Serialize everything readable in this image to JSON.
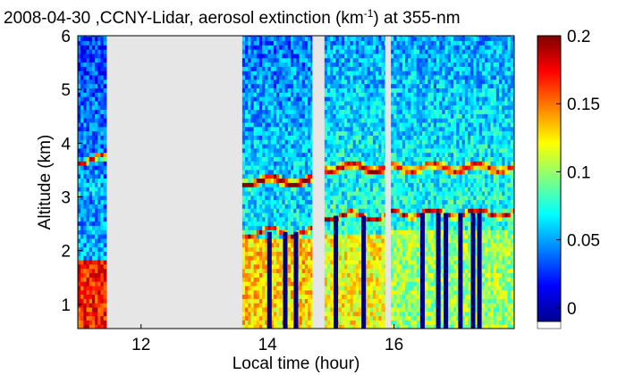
{
  "chart_data": {
    "type": "heatmap",
    "title": {
      "prefix": "2008-04-30 ,CCNY-Lidar, aerosol extinction (km",
      "sup": "-1",
      "suffix": ") at 355-nm"
    },
    "xlabel": "Local time (hour)",
    "ylabel": "Altitude (km)",
    "xlim": [
      11,
      17.9
    ],
    "ylim": [
      0.55,
      6
    ],
    "x_ticks": [
      12,
      14,
      16
    ],
    "y_ticks": [
      1,
      2,
      3,
      4,
      5,
      6
    ],
    "colorbar": {
      "range": [
        -0.01,
        0.2
      ],
      "ticks": [
        0,
        0.05,
        0.1,
        0.15,
        0.2
      ],
      "colormap": "jet",
      "min_swatch_color": "#ffffff"
    },
    "no_data_color": "#e6e6e6",
    "data_segments": [
      {
        "t_start": 11.0,
        "t_end": 11.45,
        "layers": [
          {
            "alt": 3.7,
            "value": 0.19,
            "width": 0.06
          },
          {
            "alt": 3.1,
            "value": 0.06,
            "width": 0.3
          }
        ],
        "boundary_layer": {
          "top": 1.85,
          "value": 0.17
        },
        "background_low": 0.06,
        "background_high": 0.03
      },
      {
        "t_start": 13.6,
        "t_end": 14.7,
        "layers": [
          {
            "alt": 3.3,
            "value": 0.2,
            "width": 0.09
          },
          {
            "alt": 2.35,
            "value": 0.19,
            "width": 0.06
          }
        ],
        "boundary_layer": {
          "top": 2.2,
          "value": 0.13
        },
        "background_low": 0.08,
        "background_high": 0.04
      },
      {
        "t_start": 14.9,
        "t_end": 15.85,
        "layers": [
          {
            "alt": 3.55,
            "value": 0.19,
            "width": 0.1
          },
          {
            "alt": 2.65,
            "value": 0.2,
            "width": 0.06
          }
        ],
        "boundary_layer": {
          "top": 2.3,
          "value": 0.12
        },
        "background_low": 0.09,
        "background_high": 0.05
      },
      {
        "t_start": 15.95,
        "t_end": 17.9,
        "layers": [
          {
            "alt": 3.55,
            "value": 0.17,
            "width": 0.1
          },
          {
            "alt": 2.7,
            "value": 0.2,
            "width": 0.06
          }
        ],
        "boundary_layer": {
          "top": 2.4,
          "value": 0.1
        },
        "background_low": 0.09,
        "background_high": 0.05
      }
    ],
    "cloud_columns": [
      14.03,
      14.28,
      14.45,
      15.08,
      15.52,
      16.45,
      16.7,
      16.82,
      17.05,
      17.25,
      17.35
    ],
    "cloud_column_value": -0.01
  }
}
